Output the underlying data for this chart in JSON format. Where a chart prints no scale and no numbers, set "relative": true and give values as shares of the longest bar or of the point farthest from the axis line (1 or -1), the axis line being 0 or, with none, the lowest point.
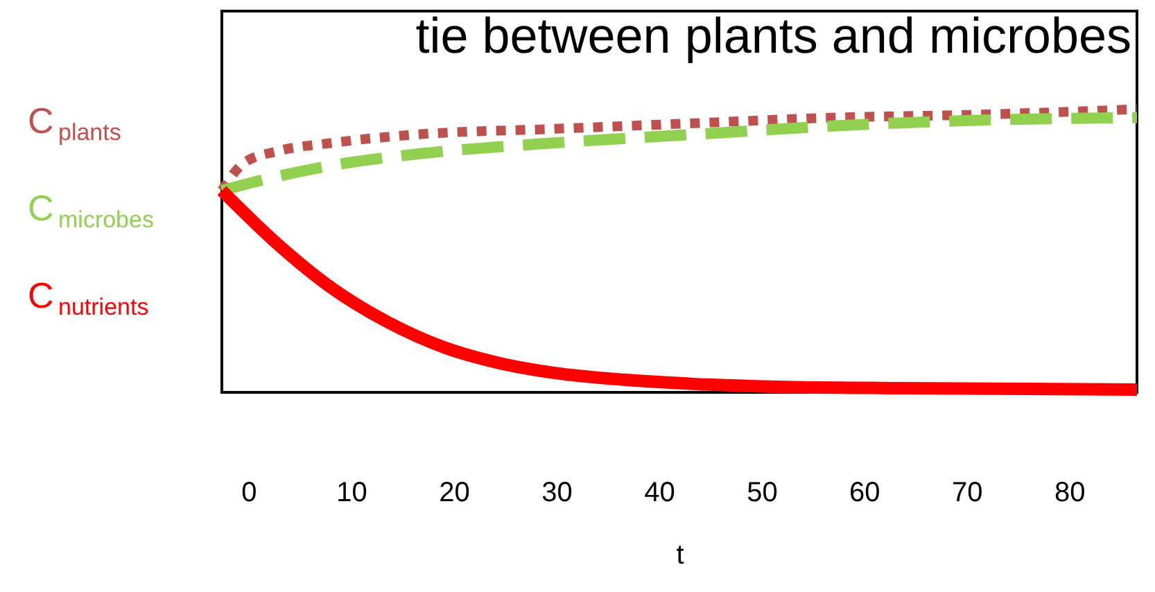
{
  "chart_data": {
    "type": "line",
    "title": "tie between plants and microbes",
    "xlabel": "t",
    "relative": true,
    "legend": "left",
    "grid": false,
    "marker": "none",
    "xlim": [
      -2.6,
      86.6
    ],
    "xticks": [
      0,
      10,
      20,
      30,
      40,
      50,
      60,
      70,
      80
    ],
    "series": [
      {
        "name": "C$_{plants}$",
        "color": "#c0504d",
        "line_style": "dotted",
        "x": [
          -2.6,
          -0.4,
          2.8,
          8.2,
          16.4,
          29.9,
          43.4,
          56.9,
          70.4,
          86.6
        ],
        "values": [
          0.71,
          0.81,
          0.85,
          0.88,
          0.91,
          0.93,
          0.95,
          0.97,
          0.98,
          1
        ]
      },
      {
        "name": "C$_{microbes}$",
        "color": "#92d050",
        "line_style": "dashed",
        "x": [
          -2.6,
          2.8,
          8.2,
          16.4,
          29.9,
          43.4,
          56.9,
          70.4,
          86.6
        ],
        "values": [
          0.71,
          0.76,
          0.8,
          0.84,
          0.88,
          0.91,
          0.94,
          0.96,
          0.97
        ]
      },
      {
        "name": "C$_{nutrients}$",
        "color": "#ff0000",
        "line_style": "solid",
        "x": [
          -2.6,
          2.8,
          8.2,
          13.6,
          19.1,
          24.5,
          29.9,
          36.6,
          43.4,
          51.5,
          63.6,
          86.6
        ],
        "values": [
          0.71,
          0.52,
          0.36,
          0.24,
          0.15,
          0.094,
          0.059,
          0.035,
          0.02,
          0.01,
          0.005,
          0
        ]
      }
    ]
  }
}
